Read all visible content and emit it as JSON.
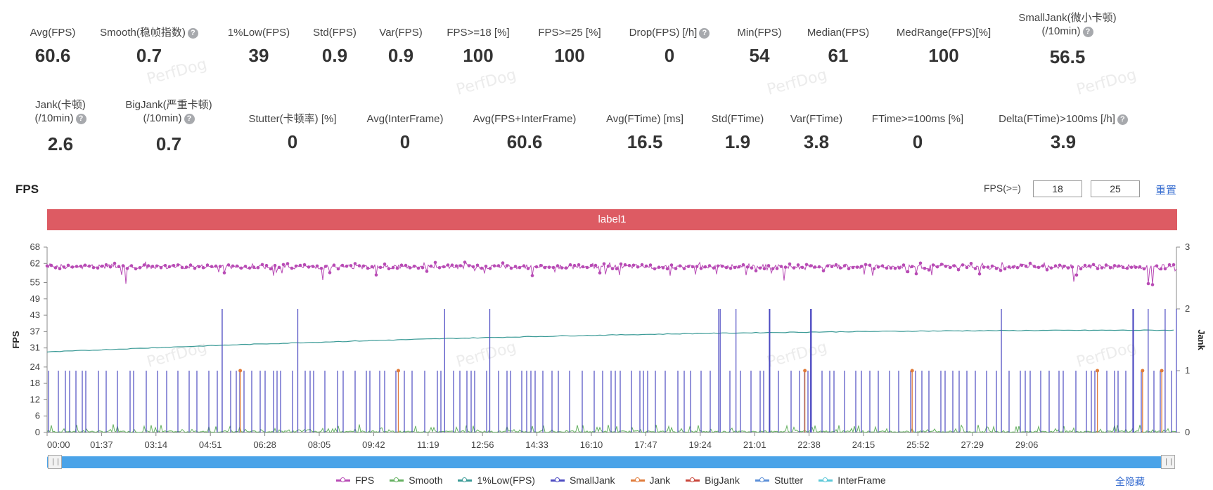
{
  "metrics_row1": [
    {
      "label": "Avg(FPS)",
      "value": "60.6",
      "help": false
    },
    {
      "label": "Smooth(稳帧指数)",
      "value": "0.7",
      "help": true
    },
    {
      "label": "1%Low(FPS)",
      "value": "39",
      "help": false
    },
    {
      "label": "Std(FPS)",
      "value": "0.9",
      "help": false
    },
    {
      "label": "Var(FPS)",
      "value": "0.9",
      "help": false
    },
    {
      "label": "FPS>=18 [%]",
      "value": "100",
      "help": false
    },
    {
      "label": "FPS>=25 [%]",
      "value": "100",
      "help": false
    },
    {
      "label": "Drop(FPS) [/h]",
      "value": "0",
      "help": true
    },
    {
      "label": "Min(FPS)",
      "value": "54",
      "help": false
    },
    {
      "label": "Median(FPS)",
      "value": "61",
      "help": false
    },
    {
      "label": "MedRange(FPS)[%]",
      "value": "100",
      "help": false
    },
    {
      "label": "SmallJank(微小卡顿)",
      "label2": "(/10min)",
      "value": "56.5",
      "help": true
    }
  ],
  "metrics_row2": [
    {
      "label": "Jank(卡顿)",
      "label2": "(/10min)",
      "value": "2.6",
      "help": true
    },
    {
      "label": "BigJank(严重卡顿)",
      "label2": "(/10min)",
      "value": "0.7",
      "help": true
    },
    {
      "label": "Stutter(卡顿率) [%]",
      "value": "0",
      "help": false
    },
    {
      "label": "Avg(InterFrame)",
      "value": "0",
      "help": false
    },
    {
      "label": "Avg(FPS+InterFrame)",
      "value": "60.6",
      "help": false
    },
    {
      "label": "Avg(FTime) [ms]",
      "value": "16.5",
      "help": false
    },
    {
      "label": "Std(FTime)",
      "value": "1.9",
      "help": false
    },
    {
      "label": "Var(FTime)",
      "value": "3.8",
      "help": false
    },
    {
      "label": "FTime>=100ms [%]",
      "value": "0",
      "help": false
    },
    {
      "label": "Delta(FTime)>100ms [/h]",
      "value": "3.9",
      "help": true
    }
  ],
  "help_glyph": "?",
  "watermark": "PerfDog",
  "section_title": "FPS",
  "threshold": {
    "label": "FPS(>=)",
    "low": "18",
    "high": "25",
    "reset": "重置"
  },
  "label_bar": "label1",
  "chart_data": {
    "type": "line",
    "x_ticks": [
      "00:00",
      "01:37",
      "03:14",
      "04:51",
      "06:28",
      "08:05",
      "09:42",
      "11:19",
      "12:56",
      "14:33",
      "16:10",
      "17:47",
      "19:24",
      "21:01",
      "22:38",
      "24:15",
      "25:52",
      "27:29",
      "29:06"
    ],
    "y_left_ticks": [
      "0",
      "6",
      "12",
      "18",
      "24",
      "31",
      "37",
      "43",
      "49",
      "55",
      "62",
      "68"
    ],
    "y_left_range": [
      0,
      68
    ],
    "y_right_ticks": [
      "0",
      "1",
      "2",
      "3"
    ],
    "y_right_range": [
      0,
      3
    ],
    "ylabel_left": "FPS",
    "ylabel_right": "Jank",
    "duration_seconds": 1860,
    "series": [
      {
        "name": "FPS",
        "color": "#b84bb5",
        "typical": 60.6,
        "min": 54
      },
      {
        "name": "Smooth",
        "color": "#64b060"
      },
      {
        "name": "1%Low(FPS)",
        "color": "#3a9a96",
        "start": 29.5,
        "end": 37.5
      },
      {
        "name": "SmallJank",
        "color": "#4d4bc2",
        "axis": "right",
        "base_value": 1,
        "spike_value": 2
      },
      {
        "name": "Jank",
        "color": "#e07b3a",
        "axis": "right",
        "value": 1
      },
      {
        "name": "BigJank",
        "color": "#c9453a",
        "axis": "right"
      },
      {
        "name": "Stutter",
        "color": "#5b8fd8",
        "axis": "right"
      },
      {
        "name": "InterFrame",
        "color": "#5bc8d8"
      }
    ]
  },
  "legend_hide_all": "全隐藏",
  "colors": {
    "label_bar": "#dd5b63",
    "scrollbar": "#4aa3e8",
    "link": "#3a6fd1"
  }
}
